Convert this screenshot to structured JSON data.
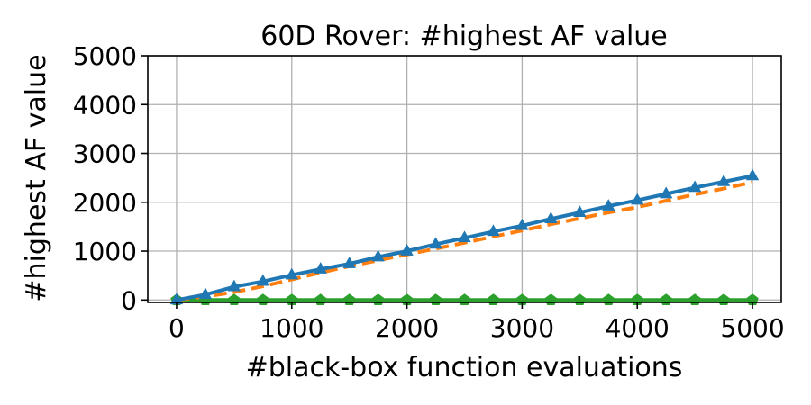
{
  "chart_data": {
    "type": "line",
    "title": "60D Rover: #highest AF value",
    "xlabel": "#black-box function evaluations",
    "ylabel": "#highest AF value",
    "xlim": [
      -250,
      5250
    ],
    "ylim": [
      -50,
      5000
    ],
    "xticks": [
      0,
      1000,
      2000,
      3000,
      4000,
      5000
    ],
    "yticks": [
      0,
      1000,
      2000,
      3000,
      4000,
      5000
    ],
    "xtick_labels": [
      "0",
      "1000",
      "2000",
      "3000",
      "4000",
      "5000"
    ],
    "ytick_labels": [
      "0",
      "1000",
      "2000",
      "3000",
      "4000",
      "5000"
    ],
    "grid": true,
    "legend": false,
    "series": [
      {
        "color": "#1f77b4",
        "line_style": "solid",
        "marker": "triangle",
        "x": [
          0,
          250,
          500,
          750,
          1000,
          1250,
          1500,
          1750,
          2000,
          2250,
          2500,
          2750,
          3000,
          3250,
          3500,
          3750,
          4000,
          4250,
          4500,
          4750,
          5000
        ],
        "y": [
          0,
          110,
          270,
          380,
          510,
          630,
          740,
          880,
          1000,
          1140,
          1270,
          1400,
          1520,
          1660,
          1790,
          1920,
          2040,
          2170,
          2300,
          2420,
          2540
        ]
      },
      {
        "color": "#ff7f0e",
        "line_style": "dashed",
        "marker": "none",
        "x": [
          0,
          250,
          500,
          750,
          1000,
          1250,
          1500,
          1750,
          2000,
          2250,
          2500,
          2750,
          3000,
          3250,
          3500,
          3750,
          4000,
          4250,
          4500,
          4750,
          5000
        ],
        "y": [
          0,
          70,
          160,
          280,
          420,
          560,
          690,
          810,
          930,
          1050,
          1170,
          1300,
          1420,
          1550,
          1670,
          1790,
          1900,
          2030,
          2160,
          2280,
          2410
        ]
      },
      {
        "color": "#2ca02c",
        "line_style": "solid",
        "marker": "pentagon",
        "x": [
          0,
          250,
          500,
          750,
          1000,
          1250,
          1500,
          1750,
          2000,
          2250,
          2500,
          2750,
          3000,
          3250,
          3500,
          3750,
          4000,
          4250,
          4500,
          4750,
          5000
        ],
        "y": [
          0,
          0,
          0,
          0,
          0,
          0,
          0,
          0,
          0,
          0,
          0,
          0,
          0,
          0,
          0,
          0,
          0,
          0,
          0,
          0,
          0
        ]
      }
    ]
  }
}
